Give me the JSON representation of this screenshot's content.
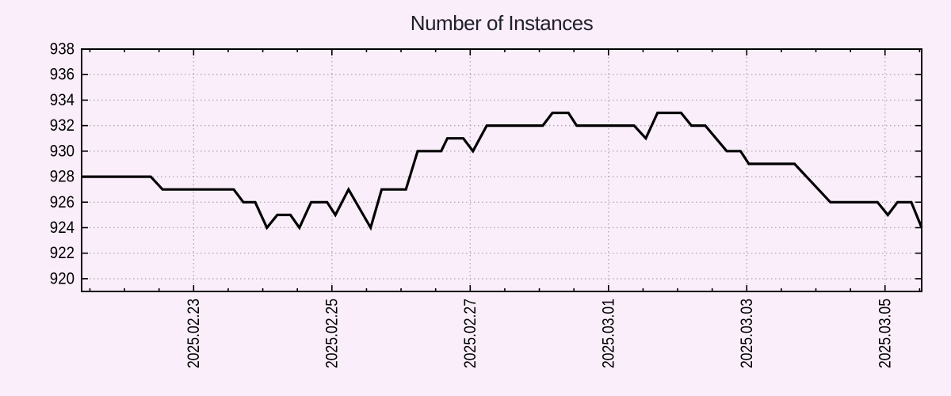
{
  "chart_data": {
    "type": "line",
    "title": "Number of Instances",
    "legend": {
      "show": false
    },
    "grid": {
      "show": true,
      "style": "dotted"
    },
    "x_axis": {
      "unit": "days since 2025-02-23 00:00",
      "range": [
        -1.62,
        10.53
      ],
      "minor_tick_step": 0.5,
      "tick_label_rotation_deg": -90,
      "major_ticks": [
        {
          "pos": 0,
          "label": "2025.02.23"
        },
        {
          "pos": 2,
          "label": "2025.02.25"
        },
        {
          "pos": 4,
          "label": "2025.02.27"
        },
        {
          "pos": 6,
          "label": "2025.03.01"
        },
        {
          "pos": 8,
          "label": "2025.03.03"
        },
        {
          "pos": 10,
          "label": "2025.03.05"
        }
      ]
    },
    "y_axis": {
      "range": [
        919,
        938
      ],
      "tick_step": 2,
      "tick_labels": [
        "920",
        "922",
        "924",
        "926",
        "928",
        "930",
        "932",
        "934",
        "936",
        "938"
      ]
    },
    "series": [
      {
        "name": "instances",
        "color": "#000000",
        "width": 3.2,
        "points": [
          [
            -1.62,
            928
          ],
          [
            -0.62,
            928
          ],
          [
            -0.45,
            927
          ],
          [
            0.58,
            927
          ],
          [
            0.72,
            926
          ],
          [
            0.89,
            926
          ],
          [
            1.06,
            924
          ],
          [
            1.21,
            925
          ],
          [
            1.4,
            925
          ],
          [
            1.53,
            924
          ],
          [
            1.7,
            926
          ],
          [
            1.93,
            926
          ],
          [
            2.05,
            925
          ],
          [
            2.24,
            927
          ],
          [
            2.56,
            924
          ],
          [
            2.72,
            927
          ],
          [
            3.07,
            927
          ],
          [
            3.24,
            930
          ],
          [
            3.58,
            930
          ],
          [
            3.67,
            931
          ],
          [
            3.9,
            931
          ],
          [
            4.04,
            930
          ],
          [
            4.24,
            932
          ],
          [
            5.05,
            932
          ],
          [
            5.19,
            933
          ],
          [
            5.42,
            933
          ],
          [
            5.54,
            932
          ],
          [
            6.37,
            932
          ],
          [
            6.54,
            931
          ],
          [
            6.71,
            933
          ],
          [
            7.05,
            933
          ],
          [
            7.2,
            932
          ],
          [
            7.4,
            932
          ],
          [
            7.71,
            930
          ],
          [
            7.91,
            930
          ],
          [
            8.03,
            929
          ],
          [
            8.69,
            929
          ],
          [
            9.21,
            926
          ],
          [
            9.89,
            926
          ],
          [
            10.04,
            925
          ],
          [
            10.18,
            926
          ],
          [
            10.38,
            926
          ],
          [
            10.53,
            924
          ]
        ]
      }
    ],
    "colors": {
      "background": "#faeefa",
      "line": "#000000",
      "grid": "#b5aab5",
      "axis": "#000000",
      "text": "#000000",
      "title": "#20202c"
    }
  }
}
